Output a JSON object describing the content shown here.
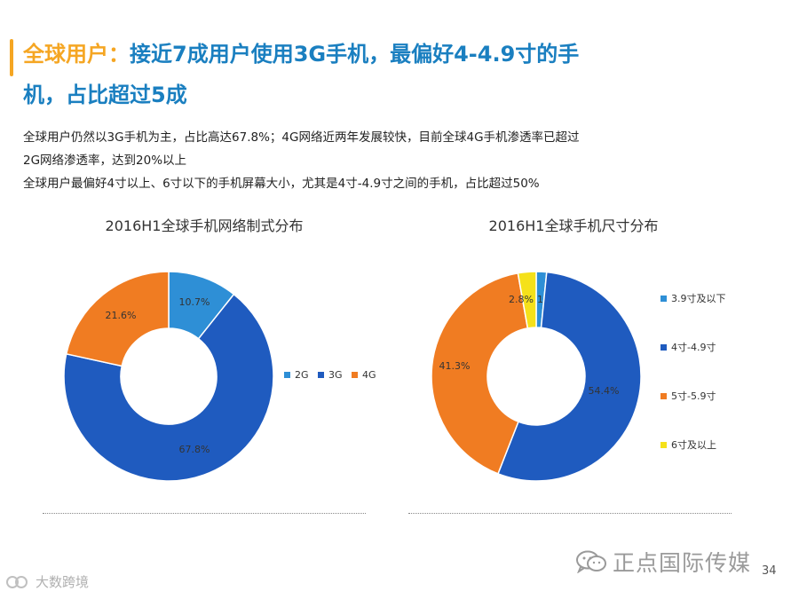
{
  "header": {
    "title_highlight": "全球用户：",
    "title_line1_rest": "接近7成用户使用3G手机，最偏好4-4.9寸的手",
    "title_line2": "机，占比超过5成"
  },
  "description": {
    "line1": "全球用户仍然以3G手机为主，占比高达67.8%；4G网络近两年发展较快，目前全球4G手机渗透率已超过",
    "line2": "2G网络渗透率，达到20%以上",
    "line3": "全球用户最偏好4寸以上、6寸以下的手机屏幕大小，尤其是4寸-4.9寸之间的手机，占比超过50%"
  },
  "chart_data": [
    {
      "type": "pie",
      "variant": "donut",
      "title": "2016H1全球手机网络制式分布",
      "legend_position": "right",
      "slices": [
        {
          "label": "2G",
          "value": 10.7,
          "display": "10.7%",
          "color": "#2e8fd6"
        },
        {
          "label": "3G",
          "value": 67.8,
          "display": "67.8%",
          "color": "#1f5bbf"
        },
        {
          "label": "4G",
          "value": 21.6,
          "display": "21.6%",
          "color": "#f07c22"
        }
      ]
    },
    {
      "type": "pie",
      "variant": "donut",
      "title": "2016H1全球手机尺寸分布",
      "legend_position": "right",
      "slices": [
        {
          "label": "3.9寸及以下",
          "value": 1.6,
          "display": "1.6%",
          "color": "#2e8fd6"
        },
        {
          "label": "4寸-4.9寸",
          "value": 54.4,
          "display": "54.4%",
          "color": "#1f5bbf"
        },
        {
          "label": "5寸-5.9寸",
          "value": 41.3,
          "display": "41.3%",
          "color": "#f07c22"
        },
        {
          "label": "6寸及以上",
          "value": 2.8,
          "display": "2.8%",
          "color": "#f5e11a"
        }
      ]
    }
  ],
  "watermarks": {
    "brand_right": "正点国际传媒",
    "brand_left": "大数跨境"
  },
  "page_number": "34",
  "icons": [
    "wechat-icon"
  ]
}
